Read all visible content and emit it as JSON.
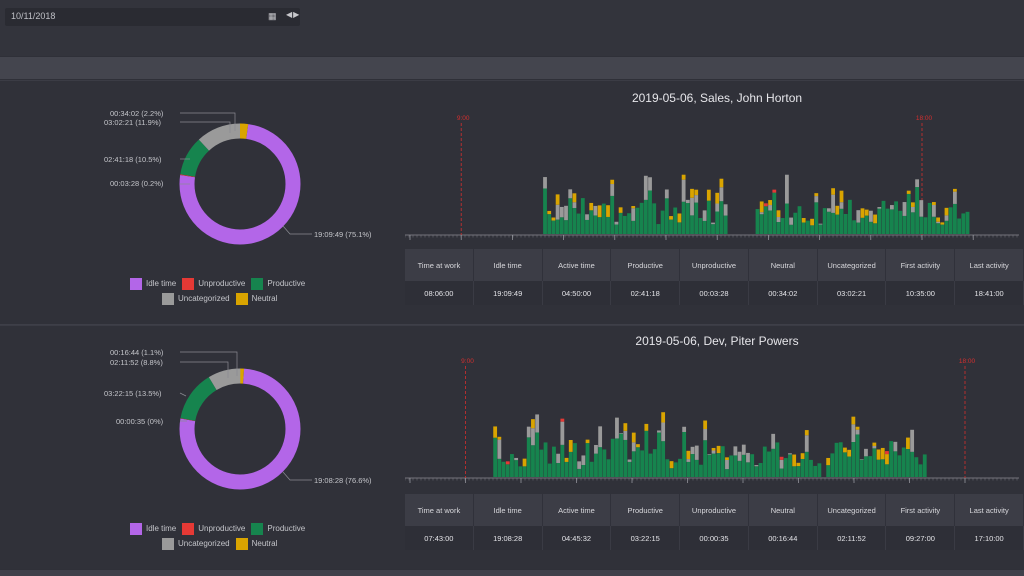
{
  "date_picker": {
    "value": "10/11/2018",
    "calendar_icon": "calendar-icon",
    "nav_icons": "prev-next-arrows-icon"
  },
  "colors": {
    "idle": "#b366e8",
    "unproductive": "#e53935",
    "productive": "#16844e",
    "uncategorized": "#9a9a9a",
    "neutral": "#d9a400",
    "marker": "#d32f2f"
  },
  "legend": {
    "idle": "Idle time",
    "unproductive": "Unproductive",
    "productive": "Productive",
    "uncategorized": "Uncategorized",
    "neutral": "Neutral"
  },
  "panels": [
    {
      "title": "2019-05-06, Sales, John Horton",
      "donut": {
        "labels": {
          "neutral": "00:34:02 (2.2%)",
          "uncategorized": "03:02:21 (11.9%)",
          "productive": "02:41:18 (10.5%)",
          "unproductive": "00:03:28 (0.2%)",
          "idle": "19:09:49 (75.1%)"
        },
        "fractions": {
          "idle": 0.751,
          "unproductive": 0.002,
          "productive": 0.105,
          "uncategorized": 0.119,
          "neutral": 0.022
        }
      },
      "markers": {
        "start": "9:00",
        "end": "18:00",
        "start_hour": 9,
        "end_hour": 18
      },
      "axis": {
        "ticks": [
          "08",
          "09",
          "10",
          "11",
          "12",
          "13",
          "14",
          "15",
          "16",
          "17",
          "18",
          "19"
        ]
      },
      "table": {
        "headers": [
          "Time at work",
          "Idle time",
          "Active time",
          "Productive",
          "Unproductive",
          "Neutral",
          "Uncategorized",
          "First activity",
          "Last activity"
        ],
        "values": [
          "08:06:00",
          "19:09:49",
          "04:50:00",
          "02:41:18",
          "00:03:28",
          "00:34:02",
          "03:02:21",
          "10:35:00",
          "18:41:00"
        ]
      }
    },
    {
      "title": "2019-05-06, Dev, Piter Powers",
      "donut": {
        "labels": {
          "neutral": "00:16:44 (1.1%)",
          "uncategorized": "02:11:52 (8.8%)",
          "productive": "03:22:15 (13.5%)",
          "unproductive": "00:00:35 (0%)",
          "idle": "19:08:28 (76.6%)"
        },
        "fractions": {
          "idle": 0.766,
          "unproductive": 0.001,
          "productive": 0.135,
          "uncategorized": 0.088,
          "neutral": 0.011
        }
      },
      "markers": {
        "start": "9:00",
        "end": "18:00",
        "start_hour": 9,
        "end_hour": 18
      },
      "axis": {
        "ticks": [
          "08",
          "09",
          "10",
          "11",
          "12",
          "13",
          "14",
          "15",
          "16",
          "17",
          "18"
        ]
      },
      "table": {
        "headers": [
          "Time at work",
          "Idle time",
          "Active time",
          "Productive",
          "Unproductive",
          "Neutral",
          "Uncategorized",
          "First activity",
          "Last activity"
        ],
        "values": [
          "07:43:00",
          "19:08:28",
          "04:45:32",
          "03:22:15",
          "00:00:35",
          "00:16:44",
          "02:11:52",
          "09:27:00",
          "17:10:00"
        ]
      }
    }
  ]
}
